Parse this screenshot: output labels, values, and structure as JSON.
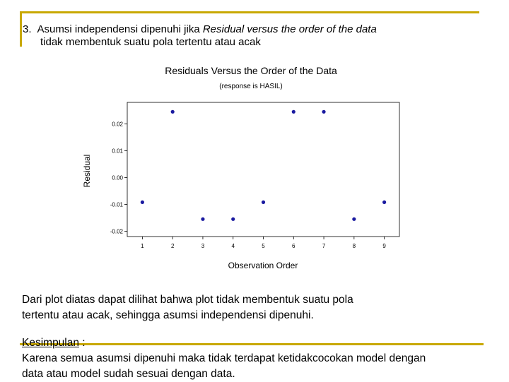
{
  "heading": {
    "number": "3.",
    "text_before": "Asumsi independensi dipenuhi jika ",
    "text_italic": "Residual versus the order of the data",
    "line2": "tidak membentuk suatu pola tertentu atau acak"
  },
  "chart_data": {
    "type": "scatter",
    "title": "Residuals Versus the Order of the Data",
    "subtitle": "(response is HASIL)",
    "xlabel": "Observation Order",
    "ylabel": "Residual",
    "x": [
      1,
      2,
      3,
      4,
      5,
      6,
      7,
      8,
      9
    ],
    "y": [
      -0.0092,
      0.0245,
      -0.0155,
      -0.0155,
      -0.0092,
      0.0245,
      0.0245,
      -0.0155,
      -0.0092
    ],
    "x_ticks": [
      "1",
      "2",
      "3",
      "4",
      "5",
      "6",
      "7",
      "8",
      "9"
    ],
    "y_ticks": [
      "0.02",
      "0.01",
      "0.00",
      "-0.01",
      "-0.02"
    ],
    "y_tick_values": [
      0.02,
      0.01,
      0.0,
      -0.01,
      -0.02
    ],
    "xlim": [
      0.5,
      9.5
    ],
    "ylim": [
      -0.022,
      0.028
    ],
    "grid": false,
    "marker_color": "#1a1aa0"
  },
  "paragraph": {
    "line1": "Dari plot diatas dapat dilihat bahwa plot tidak membentuk suatu pola",
    "line2": "tertentu atau acak, sehingga asumsi independensi dipenuhi."
  },
  "conclusion": {
    "title": "Kesimpulan",
    "colon": " :",
    "line1": "Karena semua asumsi dipenuhi maka tidak terdapat ketidakcocokan model dengan",
    "line2": "data atau model sudah sesuai dengan data."
  },
  "accent_color": "#c8a800"
}
